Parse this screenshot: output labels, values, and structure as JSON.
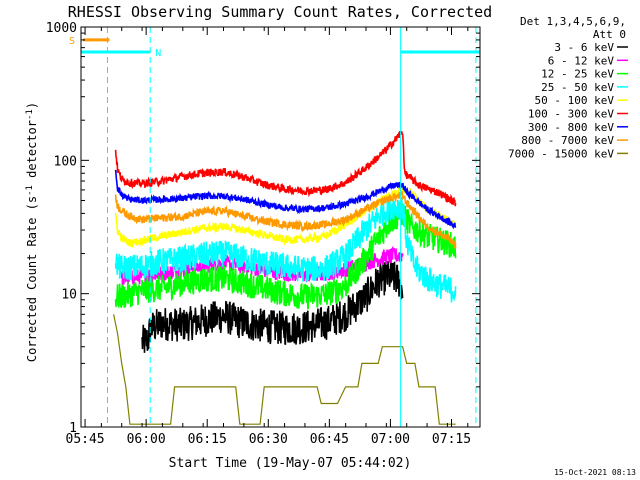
{
  "chart_data": {
    "type": "line",
    "title": "RHESSI Observing Summary Count Rates, Corrected",
    "xlabel": "Start Time (19-May-07 05:44:02)",
    "ylabel": "Corrected Count Rate (s",
    "ylabel_sup": "-1",
    "ylabel_mid": " detector",
    "ylabel_end": ")",
    "x_unit": "minutes since 05:44:02",
    "xlim": [
      0,
      98
    ],
    "ylim": [
      1,
      1000
    ],
    "y_scale": "log",
    "x_ticks": [
      {
        "x": 1,
        "label": "05:45"
      },
      {
        "x": 16,
        "label": "06:00"
      },
      {
        "x": 31,
        "label": "06:15"
      },
      {
        "x": 46,
        "label": "06:30"
      },
      {
        "x": 61,
        "label": "06:45"
      },
      {
        "x": 76,
        "label": "07:00"
      },
      {
        "x": 91,
        "label": "07:15"
      }
    ],
    "y_ticks": [
      {
        "y": 1,
        "label": "1"
      },
      {
        "y": 10,
        "label": "10"
      },
      {
        "y": 100,
        "label": "100"
      },
      {
        "y": 1000,
        "label": "1000"
      }
    ],
    "legend_title": [
      "Det 1,3,4,5,6,9,",
      "Att 0"
    ],
    "legend_position": "right",
    "series": [
      {
        "name": "3 - 6 keV",
        "color": "#000000",
        "noise": 0.13,
        "points": [
          [
            15,
            4.3
          ],
          [
            16.5,
            4.5
          ],
          [
            17,
            5.5
          ],
          [
            20,
            6
          ],
          [
            25,
            5.8
          ],
          [
            30,
            6.3
          ],
          [
            35,
            6.8
          ],
          [
            40,
            6
          ],
          [
            45,
            5.7
          ],
          [
            50,
            5.5
          ],
          [
            55,
            5.6
          ],
          [
            60,
            6
          ],
          [
            65,
            7
          ],
          [
            70,
            9.5
          ],
          [
            73,
            12.5
          ],
          [
            76,
            13.5
          ],
          [
            78,
            12.5
          ],
          [
            79,
            11
          ]
        ]
      },
      {
        "name": "6 - 12 keV",
        "color": "#ff00ff",
        "noise": 0.06,
        "points": [
          [
            10,
            13
          ],
          [
            15,
            13.5
          ],
          [
            20,
            14.2
          ],
          [
            25,
            15
          ],
          [
            30,
            16.2
          ],
          [
            35,
            17
          ],
          [
            40,
            16
          ],
          [
            45,
            15
          ],
          [
            50,
            14.2
          ],
          [
            55,
            13.8
          ],
          [
            60,
            14.2
          ],
          [
            65,
            15.2
          ],
          [
            70,
            17
          ],
          [
            75,
            19
          ],
          [
            79,
            19.5
          ]
        ]
      },
      {
        "name": "12 - 25 keV",
        "color": "#00ff00",
        "noise": 0.1,
        "points": [
          [
            8.5,
            9.5
          ],
          [
            10,
            9.5
          ],
          [
            15,
            10.5
          ],
          [
            20,
            11
          ],
          [
            25,
            12
          ],
          [
            30,
            12.8
          ],
          [
            35,
            13
          ],
          [
            40,
            12
          ],
          [
            45,
            11
          ],
          [
            50,
            10
          ],
          [
            55,
            9.5
          ],
          [
            60,
            9.8
          ],
          [
            65,
            11.5
          ],
          [
            69,
            17
          ],
          [
            73,
            26
          ],
          [
            76,
            35
          ],
          [
            79,
            40
          ],
          [
            81,
            32
          ],
          [
            85,
            27
          ],
          [
            90,
            24
          ],
          [
            92,
            22
          ]
        ]
      },
      {
        "name": "25 - 50 keV",
        "color": "#00ffff",
        "noise": 0.1,
        "points": [
          [
            8.5,
            19
          ],
          [
            9,
            16
          ],
          [
            10,
            15.5
          ],
          [
            15,
            16
          ],
          [
            20,
            17.5
          ],
          [
            25,
            18.2
          ],
          [
            30,
            19.5
          ],
          [
            35,
            20
          ],
          [
            40,
            18.5
          ],
          [
            45,
            17
          ],
          [
            50,
            16
          ],
          [
            55,
            15.2
          ],
          [
            60,
            15.5
          ],
          [
            65,
            19
          ],
          [
            69,
            28
          ],
          [
            73,
            38
          ],
          [
            76,
            45
          ],
          [
            79,
            45
          ],
          [
            80,
            25
          ],
          [
            82,
            16
          ],
          [
            85,
            13
          ],
          [
            88,
            11.5
          ],
          [
            92,
            10.5
          ]
        ]
      },
      {
        "name": "50 - 100 keV",
        "color": "#ffff00",
        "noise": 0.03,
        "points": [
          [
            8.5,
            38
          ],
          [
            9,
            30
          ],
          [
            10,
            26
          ],
          [
            12,
            24
          ],
          [
            15,
            25
          ],
          [
            20,
            27
          ],
          [
            25,
            29
          ],
          [
            30,
            31
          ],
          [
            35,
            32
          ],
          [
            40,
            30
          ],
          [
            45,
            27.5
          ],
          [
            50,
            25.5
          ],
          [
            55,
            25.5
          ],
          [
            60,
            27
          ],
          [
            65,
            33
          ],
          [
            70,
            42
          ],
          [
            75,
            53
          ],
          [
            79,
            60
          ],
          [
            81,
            57
          ],
          [
            85,
            43
          ],
          [
            90,
            36
          ],
          [
            92,
            33
          ]
        ]
      },
      {
        "name": "100 - 300 keV",
        "color": "#ff0000",
        "noise": 0.03,
        "points": [
          [
            8.5,
            120
          ],
          [
            9,
            85
          ],
          [
            10,
            72
          ],
          [
            12,
            68
          ],
          [
            15,
            67
          ],
          [
            20,
            70
          ],
          [
            25,
            76
          ],
          [
            30,
            80
          ],
          [
            35,
            82
          ],
          [
            40,
            75
          ],
          [
            45,
            66
          ],
          [
            50,
            61
          ],
          [
            55,
            59
          ],
          [
            60,
            60
          ],
          [
            65,
            68
          ],
          [
            70,
            88
          ],
          [
            75,
            120
          ],
          [
            79,
            165
          ],
          [
            79.5,
            80
          ],
          [
            83,
            65
          ],
          [
            88,
            57
          ],
          [
            92,
            48
          ]
        ]
      },
      {
        "name": "300 - 800 keV",
        "color": "#0000ff",
        "noise": 0.025,
        "points": [
          [
            8.5,
            85
          ],
          [
            9,
            62
          ],
          [
            10,
            55
          ],
          [
            12,
            51
          ],
          [
            15,
            50
          ],
          [
            20,
            51
          ],
          [
            25,
            52
          ],
          [
            30,
            54
          ],
          [
            35,
            54
          ],
          [
            40,
            51
          ],
          [
            45,
            47
          ],
          [
            50,
            44
          ],
          [
            55,
            43
          ],
          [
            60,
            44
          ],
          [
            65,
            47
          ],
          [
            70,
            53
          ],
          [
            74,
            60
          ],
          [
            77,
            65
          ],
          [
            79,
            65
          ],
          [
            80,
            58
          ],
          [
            85,
            43
          ],
          [
            90,
            35
          ],
          [
            92,
            32
          ]
        ]
      },
      {
        "name": "800 - 7000 keV",
        "color": "#ff9900",
        "noise": 0.03,
        "points": [
          [
            8.5,
            55
          ],
          [
            9,
            45
          ],
          [
            10,
            42
          ],
          [
            12,
            38
          ],
          [
            15,
            36
          ],
          [
            20,
            37
          ],
          [
            25,
            38
          ],
          [
            30,
            41
          ],
          [
            35,
            42
          ],
          [
            40,
            38
          ],
          [
            45,
            35
          ],
          [
            50,
            33
          ],
          [
            55,
            32
          ],
          [
            60,
            33
          ],
          [
            65,
            36
          ],
          [
            70,
            43
          ],
          [
            75,
            51
          ],
          [
            79,
            55
          ],
          [
            80,
            48
          ],
          [
            85,
            32
          ],
          [
            90,
            26
          ],
          [
            92,
            23
          ]
        ]
      },
      {
        "name": "7000 - 15000 keV",
        "color": "#808000",
        "noise": 0,
        "points": [
          [
            8,
            7
          ],
          [
            9,
            5
          ],
          [
            10,
            3
          ],
          [
            11,
            2
          ],
          [
            12,
            1.05
          ],
          [
            22,
            1.05
          ],
          [
            23,
            2
          ],
          [
            38,
            2
          ],
          [
            39,
            1.05
          ],
          [
            44,
            1.05
          ],
          [
            45,
            2
          ],
          [
            58,
            2
          ],
          [
            59,
            1.5
          ],
          [
            63,
            1.5
          ],
          [
            65,
            2
          ],
          [
            68,
            2
          ],
          [
            69,
            3
          ],
          [
            73,
            3
          ],
          [
            74,
            4
          ],
          [
            79,
            4
          ],
          [
            80,
            3
          ],
          [
            82,
            3
          ],
          [
            83,
            2
          ],
          [
            87,
            2
          ],
          [
            88,
            1.05
          ],
          [
            92,
            1.05
          ]
        ]
      }
    ],
    "flag_bars": [
      {
        "label": "S",
        "color": "#ff9900",
        "x_start": 0.5,
        "x_end": 7,
        "y": 800
      },
      {
        "label": "N",
        "color": "#00ffff",
        "x_start": 0,
        "x_end": 17,
        "y": 650
      },
      {
        "label": "",
        "color": "#00ffff",
        "x_start": 78.5,
        "x_end": 98,
        "y": 650
      }
    ],
    "vertical_lines": [
      {
        "x": 0,
        "color": "#00ffff",
        "style": "solid"
      },
      {
        "x": 6.5,
        "color": "#ff9900",
        "style": "dashed"
      },
      {
        "x": 17,
        "color": "#00ffff",
        "style": "dashed"
      },
      {
        "x": 78.5,
        "color": "#00ffff",
        "style": "solid"
      },
      {
        "x": 97,
        "color": "#00ffff",
        "style": "dashed"
      }
    ]
  },
  "footer_timestamp": "15-Oct-2021 08:13"
}
